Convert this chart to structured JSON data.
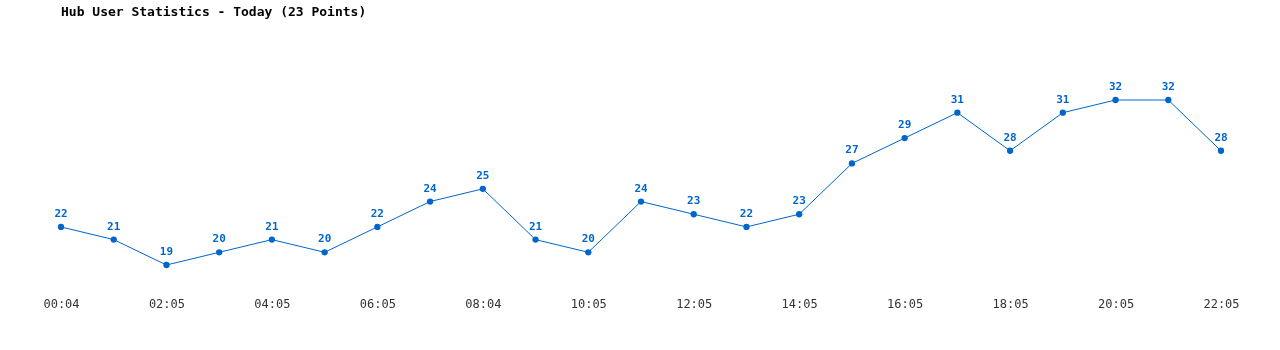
{
  "chart_data": {
    "type": "line",
    "title": "Hub User Statistics - Today (23 Points)",
    "categories": [
      "00:04",
      null,
      "02:05",
      null,
      "04:05",
      null,
      "06:05",
      null,
      "08:04",
      null,
      "10:05",
      null,
      "12:05",
      null,
      "14:05",
      null,
      "16:05",
      null,
      "18:05",
      null,
      "20:05",
      null,
      "22:05"
    ],
    "values": [
      22,
      21,
      19,
      20,
      21,
      20,
      22,
      24,
      25,
      21,
      20,
      24,
      23,
      22,
      23,
      27,
      29,
      31,
      28,
      31,
      32,
      32,
      28
    ],
    "color": "#0066cc",
    "data_labels": true,
    "marker": "circle",
    "line_style": "solid"
  }
}
